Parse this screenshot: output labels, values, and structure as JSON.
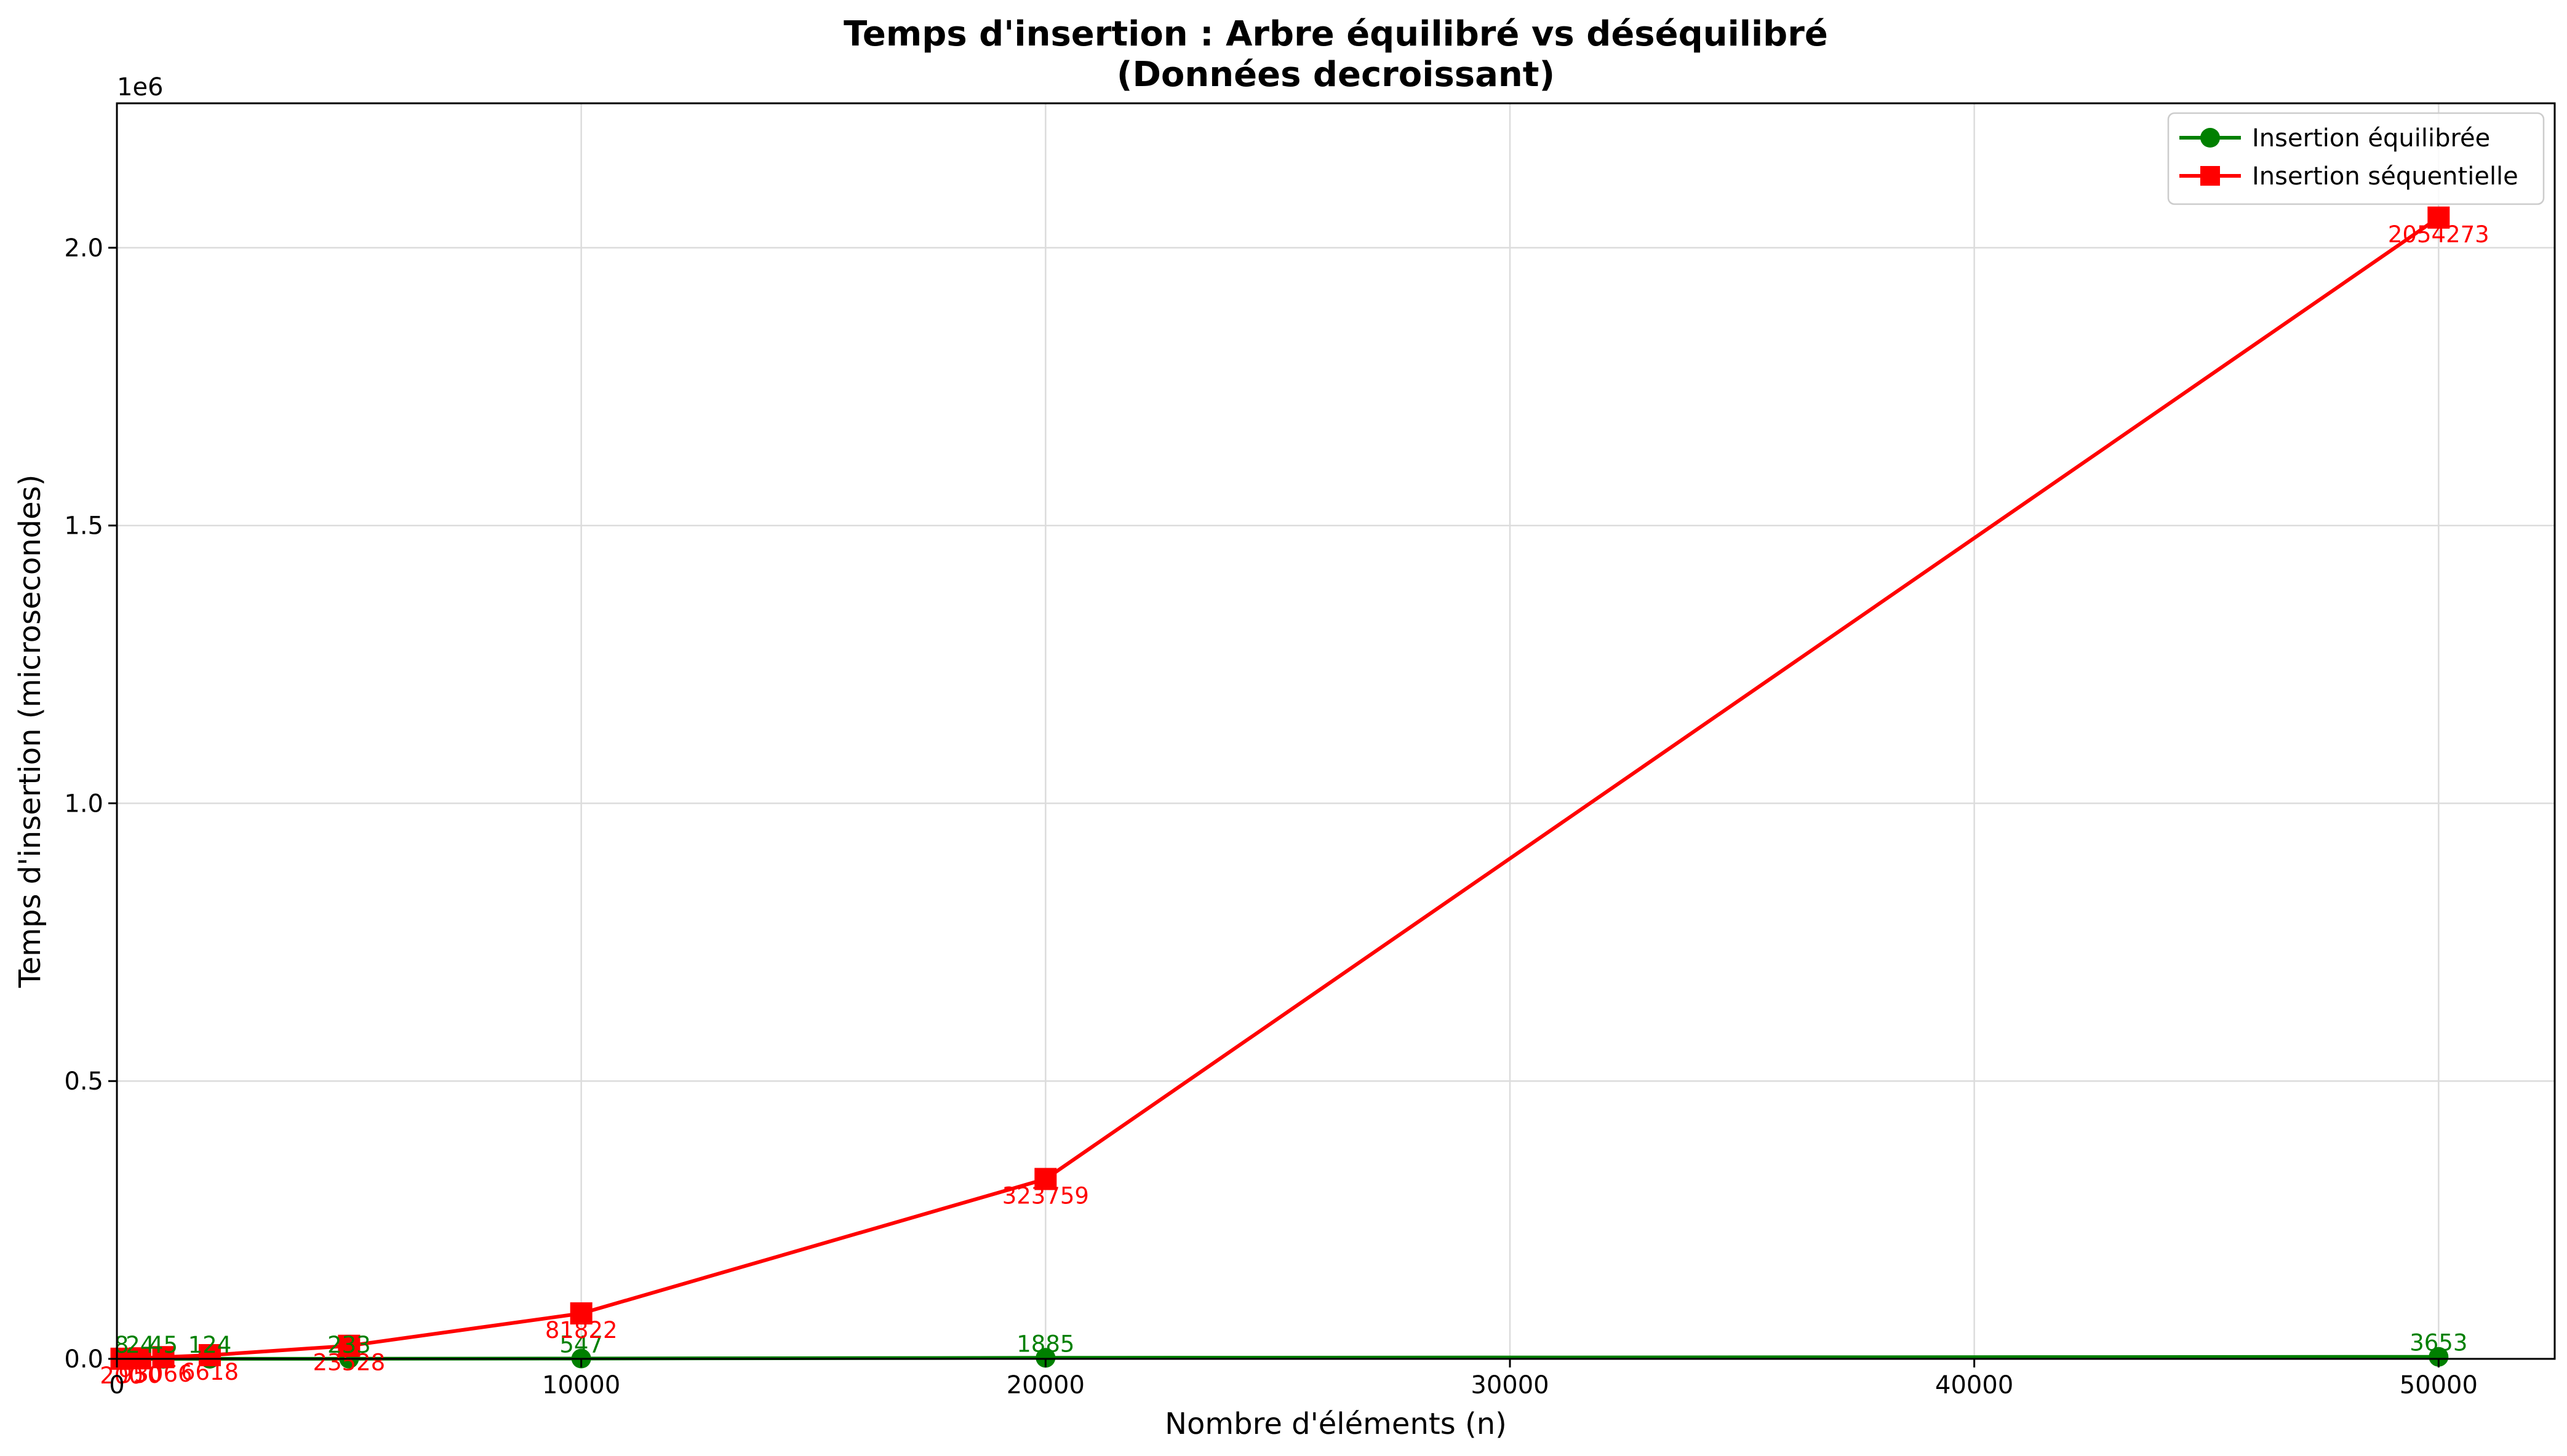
{
  "chart_data": {
    "type": "line",
    "title_line1": "Temps d'insertion : Arbre équilibré vs déséquilibré",
    "title_line2": "(Données decroissant)",
    "xlabel": "Nombre d'éléments (n)",
    "ylabel": "Temps d'insertion (microsecondes)",
    "y_offset_label": "1e6",
    "y_scale": 1000000,
    "xlim": [
      0,
      52500
    ],
    "ylim": [
      0,
      2260000
    ],
    "x_ticks": [
      0,
      10000,
      20000,
      30000,
      40000,
      50000
    ],
    "x_tick_labels": [
      "0",
      "10000",
      "20000",
      "30000",
      "40000",
      "50000"
    ],
    "y_ticks": [
      0,
      500000,
      1000000,
      1500000,
      2000000
    ],
    "y_tick_labels": [
      "0.0",
      "0.5",
      "1.0",
      "1.5",
      "2.0"
    ],
    "grid": true,
    "legend_position": "top-right",
    "x": [
      100,
      500,
      1000,
      2000,
      5000,
      10000,
      20000,
      50000
    ],
    "series": [
      {
        "name": "Insertion équilibrée",
        "color": "#008000",
        "marker": "circle",
        "values": [
          8,
          24,
          45,
          124,
          233,
          547,
          1885,
          3653
        ],
        "labels": [
          "8",
          "24",
          "45",
          "124",
          "233",
          "547",
          "1885",
          "3653"
        ]
      },
      {
        "name": "Insertion séquentielle",
        "color": "#ff0000",
        "marker": "square",
        "values": [
          200,
          950,
          3066,
          6618,
          23528,
          81822,
          323759,
          2054273
        ],
        "labels": [
          "200",
          "950",
          "3066",
          "6618",
          "23528",
          "81822",
          "323759",
          "2054273"
        ]
      }
    ]
  }
}
